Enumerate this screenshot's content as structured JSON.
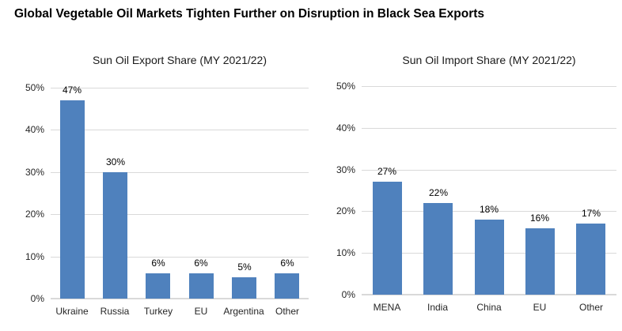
{
  "page_title": "Global Vegetable Oil Markets Tighten Further on Disruption in Black Sea Exports",
  "colors": {
    "bar_blue": "#4F81BD",
    "gridline": "#D9D9D9",
    "axis_line": "#D9D9D9",
    "tick_text": "#262626",
    "title_text": "#000000"
  },
  "chart_data": [
    {
      "type": "bar",
      "title": "Sun Oil Export Share (MY 2021/22)",
      "categories": [
        "Ukraine",
        "Russia",
        "Turkey",
        "EU",
        "Argentina",
        "Other"
      ],
      "values": [
        47,
        30,
        6,
        6,
        5,
        6
      ],
      "data_labels": [
        "47%",
        "30%",
        "6%",
        "6%",
        "5%",
        "6%"
      ],
      "bar_color": "#4F81BD",
      "xlabel": "",
      "ylabel": "",
      "ylim": [
        0,
        50
      ],
      "ytick_step": 10,
      "ytick_labels": [
        "0%",
        "10%",
        "20%",
        "30%",
        "40%",
        "50%"
      ],
      "grid": true,
      "legend": false
    },
    {
      "type": "bar",
      "title": "Sun Oil Import Share (MY 2021/22)",
      "categories": [
        "MENA",
        "India",
        "China",
        "EU",
        "Other"
      ],
      "values": [
        27,
        22,
        18,
        16,
        17
      ],
      "data_labels": [
        "27%",
        "22%",
        "18%",
        "16%",
        "17%"
      ],
      "bar_color": "#4F81BD",
      "xlabel": "",
      "ylabel": "",
      "ylim": [
        0,
        50
      ],
      "ytick_step": 10,
      "ytick_labels": [
        "0%",
        "10%",
        "20%",
        "30%",
        "40%",
        "50%"
      ],
      "grid": true,
      "legend": false
    }
  ]
}
